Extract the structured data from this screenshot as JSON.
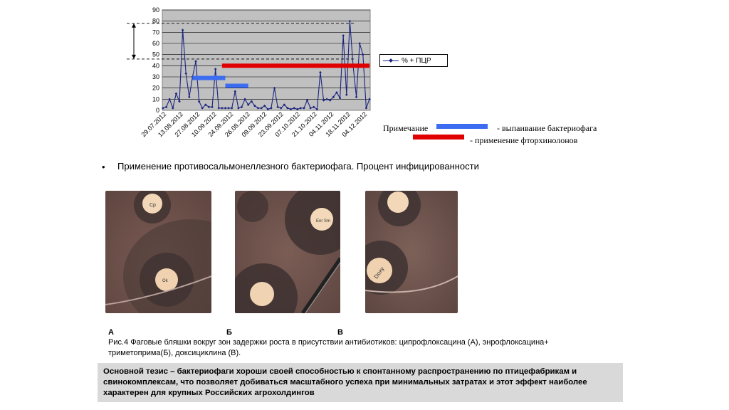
{
  "chart_data": {
    "type": "line",
    "y_ticks": [
      0,
      10,
      20,
      30,
      40,
      50,
      60,
      70,
      80,
      90
    ],
    "ylim": [
      0,
      90
    ],
    "x_tick_labels": [
      "29.07.2012",
      "13.08.2012",
      "27.08.2012",
      "10.09.2012",
      "24.09.2012",
      "26.08.2012",
      "09.09.2012",
      "23.09.2012",
      "07.10.2012",
      "21.10.2012",
      "04.11.2012",
      "18.11.2012",
      "04.12.2012"
    ],
    "series": [
      {
        "name": "% + ПЦР",
        "values": [
          2,
          3,
          10,
          2,
          15,
          8,
          72,
          33,
          12,
          30,
          44,
          8,
          2,
          5,
          3,
          3,
          37,
          2,
          2,
          2,
          2,
          2,
          17,
          2,
          3,
          10,
          5,
          8,
          4,
          2,
          2,
          4,
          1,
          2,
          20,
          3,
          2,
          5,
          2,
          1,
          2,
          1,
          2,
          2,
          9,
          2,
          3,
          1,
          34,
          9,
          10,
          9,
          12,
          16,
          11,
          67,
          14,
          80,
          40,
          12,
          60,
          50,
          2,
          10
        ],
        "color": "#1a237e"
      }
    ],
    "bars": [
      {
        "start_index": 9,
        "end_index": 19,
        "y": 29,
        "color": "#3c6cf0"
      },
      {
        "start_index": 19,
        "end_index": 26,
        "y": 22,
        "color": "#3c6cf0"
      },
      {
        "start_index": 18,
        "end_index": 63,
        "y": 40,
        "color": "#e00000"
      }
    ],
    "dashed_lines": [
      78,
      46
    ],
    "legend": {
      "placement": "right",
      "label": "% + ПЦР"
    }
  },
  "note": {
    "title": "Примечание",
    "blue_label": "- выпаивание бактериофага",
    "red_label": "- применение фторхинолонов",
    "blue_color": "#3c6cf0",
    "red_color": "#e00000"
  },
  "bullet_text": "Применение противосальмонеллезного бактериофага. Процент инфицированности",
  "photos": {
    "labels": [
      "А",
      "Б",
      "В"
    ],
    "disk_texts": [
      "Ср",
      "Enr Sm",
      "Doxy",
      "Ok"
    ]
  },
  "caption": "Рис.4 Фаговые бляшки вокруг зон задержки роста в присутствии антибиотиков: ципрофлоксацина (А), энрофлоксацина+ триметоприма(Б), доксициклина (В).",
  "thesis": "Основной тезис – бактериофаги хороши своей способностью к спонтанному распространению по птицефабрикам и свинокомплексам, что позволяет добиваться масштабного успеха при минимальных затратах и этот эффект наиболее характерен для крупных Российских агрохолдингов"
}
